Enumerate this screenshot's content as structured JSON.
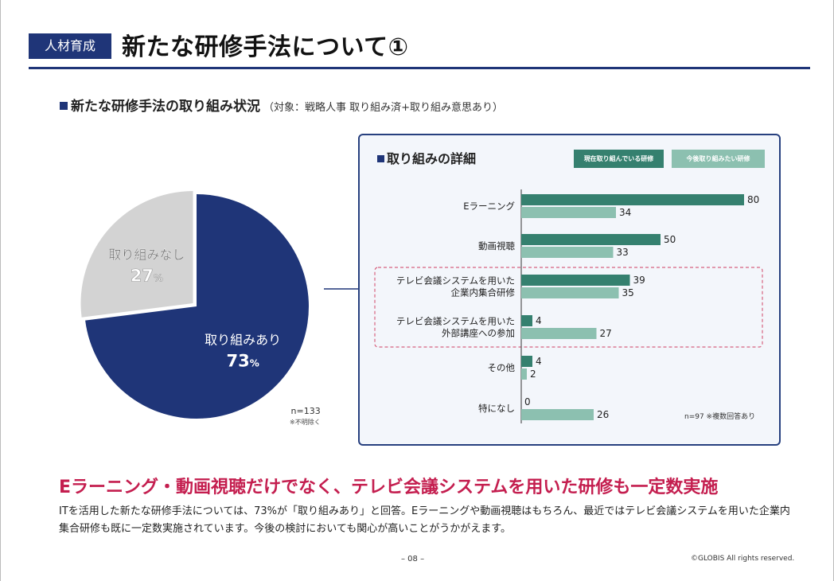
{
  "header": {
    "tag": "人材育成",
    "title": "新たな研修手法について①"
  },
  "section": {
    "title": "新たな研修手法の取り組み状況",
    "subtitle": "（対象：戦略人事 取り組み済+取り組み意思あり）"
  },
  "colors": {
    "navy": "#1f3578",
    "pie_gray": "#d3d3d3",
    "bar_current": "#35806f",
    "bar_future": "#8cc0b0",
    "headline": "#c41e4f",
    "highlight_box": "#d6627f"
  },
  "pie": {
    "n_label": "n=133",
    "note": "※不明除く"
  },
  "panel": {
    "title": "取り組みの詳細",
    "legend_current": "現在取り組んでいる研修",
    "legend_future": "今後取り組みたい研修",
    "n_label": "n=97 ※複数回答あり"
  },
  "chart_data": [
    {
      "type": "pie",
      "slices": [
        {
          "label": "取り組みあり",
          "value": 73,
          "value_text": "73",
          "unit": "%",
          "color": "#1f3578"
        },
        {
          "label": "取り組みなし",
          "value": 27,
          "value_text": "27",
          "unit": "%",
          "color": "#d3d3d3"
        }
      ]
    },
    {
      "type": "bar",
      "orientation": "horizontal",
      "categories": [
        [
          "Eラーニング"
        ],
        [
          "動画視聴"
        ],
        [
          "テレビ会議システムを用いた",
          "企業内集合研修"
        ],
        [
          "テレビ会議システムを用いた",
          "外部講座への参加"
        ],
        [
          "その他"
        ],
        [
          "特になし"
        ]
      ],
      "series": [
        {
          "name": "現在取り組んでいる研修",
          "values": [
            80,
            50,
            39,
            4,
            4,
            0
          ],
          "color": "#35806f"
        },
        {
          "name": "今後取り組みたい研修",
          "values": [
            34,
            33,
            35,
            27,
            2,
            26
          ],
          "color": "#8cc0b0"
        }
      ],
      "highlighted_categories": [
        2,
        3
      ]
    }
  ],
  "headline": "Eラーニング・動画視聴だけでなく、テレビ会議システムを用いた研修も一定数実施",
  "body": "ITを活用した新たな研修手法については、73%が「取り組みあり」と回答。Eラーニングや動画視聴はもちろん、最近ではテレビ会議システムを用いた企業内集合研修も既に一定数実施されています。今後の検討においても関心が高いことがうかがえます。",
  "footer": {
    "page": "– 08 –",
    "copyright": "©GLOBIS All rights reserved."
  }
}
